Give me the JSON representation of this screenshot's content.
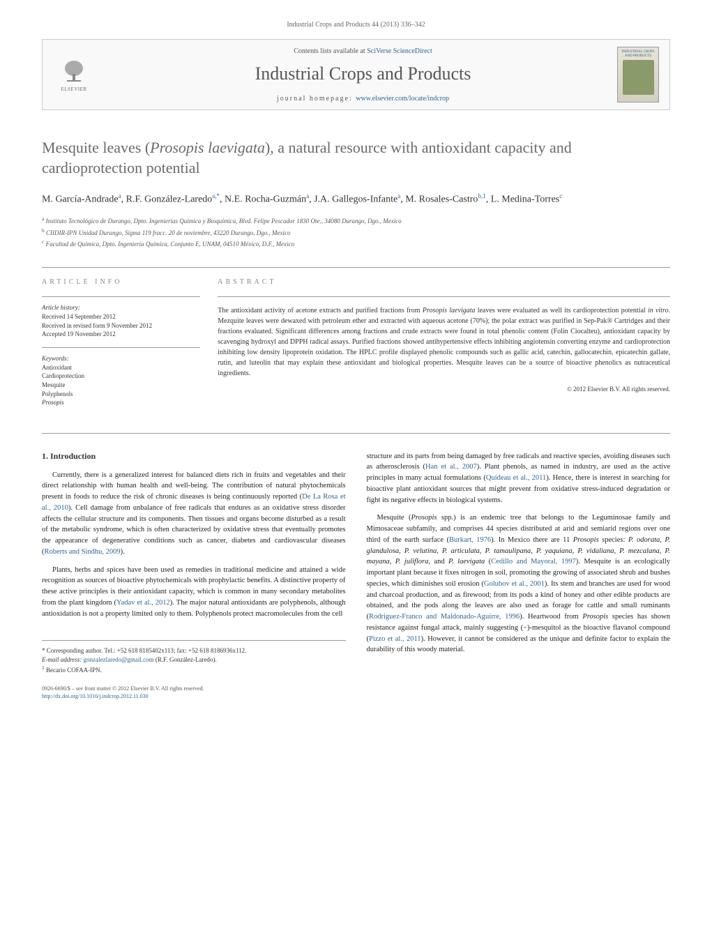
{
  "header": {
    "citation": "Industrial Crops and Products 44 (2013) 336–342"
  },
  "banner": {
    "elsevier_label": "ELSEVIER",
    "contents_line_prefix": "Contents lists available at ",
    "contents_link": "SciVerse ScienceDirect",
    "journal_name": "Industrial Crops and Products",
    "homepage_prefix": "journal homepage: ",
    "homepage_url": "www.elsevier.com/locate/indcrop",
    "cover_title": "INDUSTRIAL CROPS AND PRODUCTS"
  },
  "article": {
    "title_pre": "Mesquite leaves (",
    "title_species": "Prosopis laevigata",
    "title_post": "), a natural resource with antioxidant capacity and cardioprotection potential",
    "authors_html": "M. García-Andrade<sup>a</sup>, R.F. González-Laredo<sup>a,*</sup>, N.E. Rocha-Guzmán<sup>a</sup>, J.A. Gallegos-Infante<sup>a</sup>, M. Rosales-Castro<sup>b,1</sup>, L. Medina-Torres<sup>c</sup>",
    "affiliations": [
      {
        "sup": "a",
        "text": "Instituto Tecnológico de Durango, Dpto. Ingenierías Química y Bioquímica, Blvd. Felipe Pescador 1830 Ote., 34080 Durango, Dgo., Mexico"
      },
      {
        "sup": "b",
        "text": "CIIDIR-IPN Unidad Durango, Sigma 119 fracc. 20 de noviembre, 43220 Durango, Dgo., Mexico"
      },
      {
        "sup": "c",
        "text": "Facultad de Química, Dpto. Ingeniería Química, Conjunto E, UNAM, 04510 México, D.F., Mexico"
      }
    ]
  },
  "info": {
    "heading": "article info",
    "history_label": "Article history:",
    "history_lines": "Received 14 September 2012\nReceived in revised form 9 November 2012\nAccepted 19 November 2012",
    "keywords_label": "Keywords:",
    "keywords": "Antioxidant\nCardioprotection\nMesquite\nPolyphenols\nProsopis"
  },
  "abstract": {
    "heading": "abstract",
    "text": "The antioxidant activity of acetone extracts and purified fractions from Prosopis laevigata leaves were evaluated as well its cardioprotection potential in vitro. Mezquite leaves were dewaxed with petroleum ether and extracted with aqueous acetone (70%); the polar extract was purified in Sep-Pak® Cartridges and their fractions evaluated. Significant differences among fractions and crude extracts were found in total phenolic content (Folin Ciocalteu), antioxidant capacity by scavenging hydroxyl and DPPH radical assays. Purified fractions showed antihypertensive effects inhibiting angiotensin converting enzyme and cardioprotection inhibiting low density lipoprotein oxidation. The HPLC profile displayed phenolic compounds such as gallic acid, catechin, gallocatechin, epicatechin gallate, rutin, and luteolin that may explain these antioxidant and biological properties. Mesquite leaves can be a source of bioactive phenolics as nutraceutical ingredients.",
    "copyright": "© 2012 Elsevier B.V. All rights reserved."
  },
  "body": {
    "section_heading": "1. Introduction",
    "left_paragraphs": [
      "Currently, there is a generalized interest for balanced diets rich in fruits and vegetables and their direct relationship with human health and well-being. The contribution of natural phytochemicals present in foods to reduce the risk of chronic diseases is being continuously reported (<a href='#'>De La Rosa et al., 2010</a>). Cell damage from unbalance of free radicals that endures as an oxidative stress disorder affects the cellular structure and its components. Then tissues and organs become disturbed as a result of the metabolic syndrome, which is often characterized by oxidative stress that eventually promotes the appearance of degenerative conditions such as cancer, diabetes and cardiovascular diseases (<a href='#'>Roberts and Sindhu, 2009</a>).",
      "Plants, herbs and spices have been used as remedies in traditional medicine and attained a wide recognition as sources of bioactive phytochemicals with prophylactic benefits. A distinctive property of these active principles is their antioxidant capacity, which is common in many secondary metabolites from the plant kingdom (<a href='#'>Yadav et al., 2012</a>). The major natural antioxidants are polyphenols, although antioxidation is not a property limited only to them. Polyphenols protect macromolecules from the cell"
    ],
    "right_paragraphs": [
      "structure and its parts from being damaged by free radicals and reactive species, avoiding diseases such as atherosclerosis (<a href='#'>Han et al., 2007</a>). Plant phenols, as named in industry, are used as the active principles in many actual formulations (<a href='#'>Quideau et al., 2011</a>). Hence, there is interest in searching for bioactive plant antioxidant sources that might prevent from oxidative stress-induced degradation or fight its negative effects in biological systems.",
      "Mesquite (<em>Prosopis</em> spp.) is an endemic tree that belongs to the Leguminosae family and Mimosaceae subfamily, and comprises 44 species distributed at arid and semiarid regions over one third of the earth surface (<a href='#'>Burkart, 1976</a>). In Mexico there are 11 <em>Prosopis</em> species: <em>P. odorata, P. glandulosa, P. velutina, P. articulata, P. tamaulipana, P. yaquiana, P. vidaliana, P. mezcalana, P. mayana, P. juliflora</em>, and <em>P. laevigata</em> (<a href='#'>Cedillo and Mayoral, 1997</a>). Mesquite is an ecologically important plant because it fixes nitrogen in soil, promoting the growing of associated shrub and bushes species, which diminishes soil erosion (<a href='#'>Golubov et al., 2001</a>). Its stem and branches are used for wood and charcoal production, and as firewood; from its pods a kind of honey and other edible products are obtained, and the pods along the leaves are also used as forage for cattle and small ruminants (<a href='#'>Rodriguez-Franco and Maldonado-Aguirre, 1996</a>). Heartwood from <em>Prosopis</em> species has shown resistance against fungal attack, mainly suggesting (−)-mesquitol as the bioactive flavanol compound (<a href='#'>Pizzo et al., 2011</a>). However, it cannot be considered as the unique and definite factor to explain the durability of this woody material."
    ]
  },
  "footnotes": {
    "corresponding": "* Corresponding author. Tel.: +52 618 8185402x113; fax: +52 618 8186936x112.",
    "email_label": "E-mail address: ",
    "email": "gonzalezlaredo@gmail.com",
    "email_after": " (R.F. González-Laredo).",
    "becario": "1 Becario COFAA-IPN."
  },
  "footer": {
    "issn": "0926-6690/$ – see front matter © 2012 Elsevier B.V. All rights reserved.",
    "doi": "http://dx.doi.org/10.1016/j.indcrop.2012.11.030"
  },
  "colors": {
    "link": "#2a6496",
    "heading_gray": "#6a6a6a",
    "text": "#1a1a1a",
    "muted": "#666666"
  }
}
